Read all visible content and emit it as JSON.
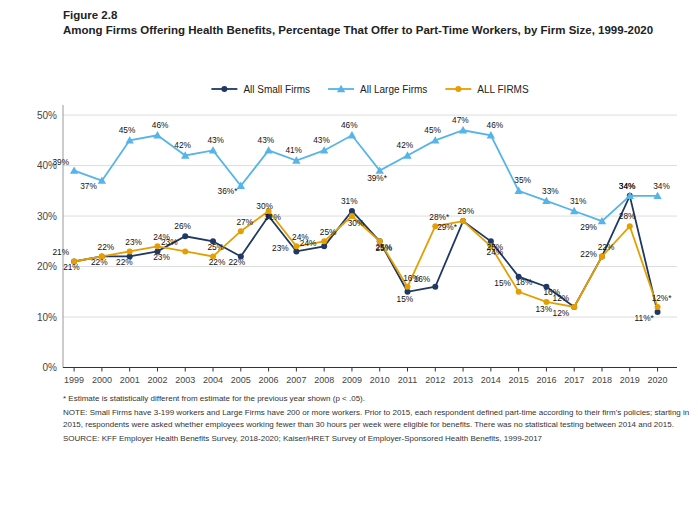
{
  "chart_data": {
    "type": "line",
    "title": "Figure 2.8",
    "subtitle": "Among Firms Offering Health Benefits, Percentage That Offer to Part-Time Workers, by Firm Size, 1999-2020",
    "annotations": [
      "* Estimate is statistically different from estimate for the previous year shown (p < .05).",
      "NOTE: Small Firms have 3-199 workers and Large Firms have 200 or more workers. Prior to 2015, each respondent defined part-time according to their firm's policies; starting in 2015, respondents were asked whether employees working fewer than 30 hours per week were eligible for benefits. There was no statistical testing between 2014 and 2015.",
      "SOURCE: KFF Employer Health Benefits Survey, 2018-2020; Kaiser/HRET Survey of Employer-Sponsored Health Benefits, 1999-2017"
    ],
    "x": [
      1999,
      2000,
      2001,
      2002,
      2003,
      2004,
      2005,
      2006,
      2007,
      2008,
      2009,
      2010,
      2011,
      2012,
      2013,
      2014,
      2015,
      2016,
      2017,
      2018,
      2019,
      2020
    ],
    "xlim": [
      1998.6,
      2020.7
    ],
    "xticks": [
      1999,
      2000,
      2001,
      2002,
      2003,
      2004,
      2005,
      2006,
      2007,
      2008,
      2009,
      2010,
      2011,
      2012,
      2013,
      2014,
      2015,
      2016,
      2017,
      2018,
      2019,
      2020
    ],
    "ylim": [
      0,
      52
    ],
    "yticks": [
      {
        "value": 0,
        "label": "0%"
      },
      {
        "value": 10,
        "label": "10%"
      },
      {
        "value": 20,
        "label": "20%"
      },
      {
        "value": 30,
        "label": "30%"
      },
      {
        "value": 40,
        "label": "40%"
      },
      {
        "value": 50,
        "label": "50%"
      }
    ],
    "grid": true,
    "legend": "top",
    "data_labels": true,
    "series": [
      {
        "name": "All Small Firms",
        "color": "#1f3864",
        "marker": "circle",
        "values": [
          21,
          22,
          22,
          23,
          26,
          25,
          22,
          30,
          23,
          24,
          31,
          25,
          15,
          16,
          29,
          25,
          18,
          16,
          12,
          22,
          34,
          11
        ],
        "value_labels": [
          "21%",
          "22%",
          "22%",
          "23%",
          "26%",
          "25%",
          "22%",
          "30%",
          "23%",
          "24%",
          "31%",
          "25%",
          "15%",
          "16%",
          "29%",
          "25%",
          "18%",
          "16%",
          "12%",
          "22%",
          "34%",
          "11%*"
        ]
      },
      {
        "name": "All Large Firms",
        "color": "#56b4e9",
        "marker": "triangle",
        "values": [
          39,
          37,
          45,
          46,
          42,
          43,
          36,
          43,
          41,
          43,
          46,
          39,
          42,
          45,
          47,
          46,
          35,
          33,
          31,
          29,
          34,
          34
        ],
        "value_labels": [
          "39%",
          "37%",
          "45%",
          "46%",
          "42%",
          "43%",
          "36%*",
          "43%",
          "41%",
          "43%",
          "46%",
          "39%*",
          "42%",
          "45%",
          "47%",
          "46%",
          "35%",
          "33%",
          "31%",
          "29%",
          "34%",
          "34%"
        ]
      },
      {
        "name": "ALL FIRMS",
        "color": "#e69f00",
        "marker": "circle",
        "values": [
          21,
          22,
          23,
          24,
          23,
          22,
          27,
          31,
          24,
          25,
          30,
          25,
          16,
          28,
          29,
          24,
          15,
          13,
          12,
          22,
          28,
          12
        ],
        "value_labels": [
          "21%",
          "22%",
          "23%",
          "24%",
          "23%",
          "22%",
          "27%",
          "31%",
          "24%",
          "25%",
          "30%",
          "25%",
          "16%",
          "28%*",
          "29%*",
          "24%",
          "15%",
          "13%",
          "12%",
          "22%",
          "28%",
          "12%*"
        ]
      }
    ]
  }
}
